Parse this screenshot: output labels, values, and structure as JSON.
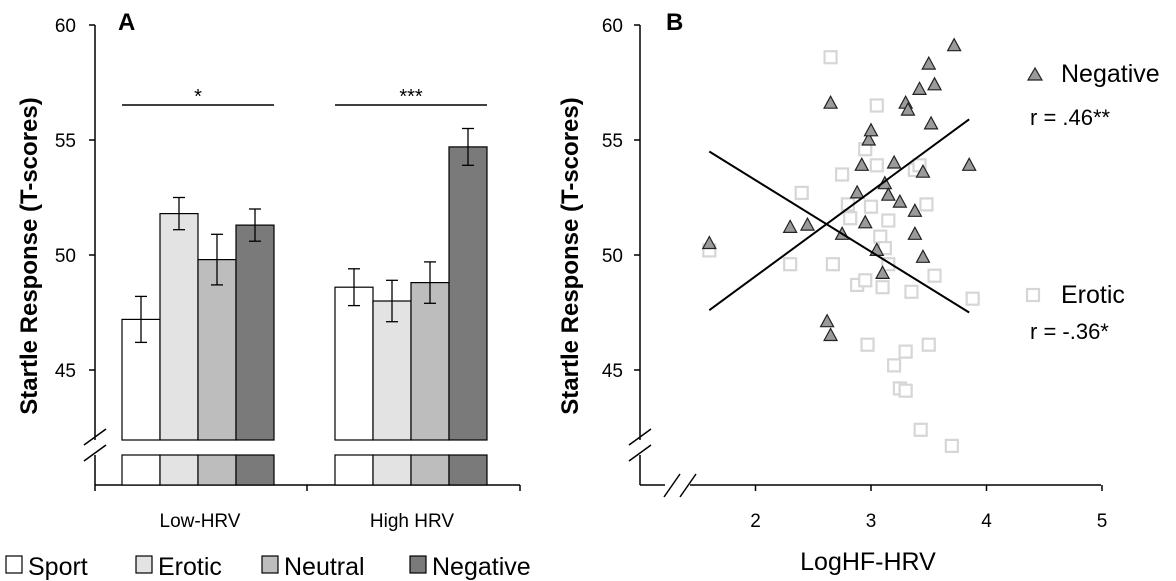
{
  "chart_data": [
    {
      "type": "bar",
      "panel_label": "A",
      "ylabel": "Startle Response (T-scores)",
      "ylim": [
        40,
        60
      ],
      "y_ticks": [
        "45",
        "50",
        "55",
        "60"
      ],
      "categories": [
        "Low-HRV",
        "High HRV"
      ],
      "series": [
        {
          "name": "Sport",
          "values": [
            47.2,
            48.6
          ],
          "errors": [
            1.0,
            0.8
          ],
          "color": "#ffffff"
        },
        {
          "name": "Erotic",
          "values": [
            51.8,
            48.0
          ],
          "errors": [
            0.7,
            0.9
          ],
          "color": "#e3e3e3"
        },
        {
          "name": "Neutral",
          "values": [
            49.8,
            48.8
          ],
          "errors": [
            1.1,
            0.9
          ],
          "color": "#bdbdbd"
        },
        {
          "name": "Negative",
          "values": [
            51.3,
            54.7
          ],
          "errors": [
            0.7,
            0.8
          ],
          "color": "#7a7a7a"
        }
      ],
      "significance": [
        "*",
        "***"
      ],
      "axis_break": true
    },
    {
      "type": "scatter",
      "panel_label": "B",
      "ylabel": "Startle Response (T-scores)",
      "xlabel": "LogHF-HRV",
      "ylim": [
        40,
        60
      ],
      "xlim": [
        1,
        5
      ],
      "x_ticks": [
        "2",
        "3",
        "4",
        "5"
      ],
      "y_ticks": [
        "45",
        "50",
        "55",
        "60"
      ],
      "axis_break": true,
      "series": [
        {
          "name": "Negative",
          "marker": "triangle",
          "color": "#9a9a9a",
          "correlation": "r = .46**",
          "trend": [
            [
              1.6,
              47.6
            ],
            [
              3.85,
              55.9
            ]
          ],
          "points": [
            [
              1.6,
              50.5
            ],
            [
              2.3,
              51.2
            ],
            [
              2.45,
              51.3
            ],
            [
              2.65,
              56.6
            ],
            [
              2.62,
              47.1
            ],
            [
              2.65,
              46.5
            ],
            [
              2.75,
              50.9
            ],
            [
              2.88,
              52.7
            ],
            [
              2.92,
              53.9
            ],
            [
              2.95,
              51.4
            ],
            [
              2.98,
              55.0
            ],
            [
              3.0,
              55.4
            ],
            [
              3.05,
              50.2
            ],
            [
              3.1,
              49.2
            ],
            [
              3.12,
              53.1
            ],
            [
              3.15,
              52.6
            ],
            [
              3.2,
              54.0
            ],
            [
              3.25,
              52.3
            ],
            [
              3.3,
              56.6
            ],
            [
              3.32,
              56.3
            ],
            [
              3.38,
              51.9
            ],
            [
              3.38,
              50.9
            ],
            [
              3.42,
              57.2
            ],
            [
              3.45,
              53.6
            ],
            [
              3.45,
              49.9
            ],
            [
              3.5,
              58.3
            ],
            [
              3.52,
              55.7
            ],
            [
              3.55,
              57.4
            ],
            [
              3.72,
              59.1
            ],
            [
              3.85,
              53.9
            ]
          ]
        },
        {
          "name": "Erotic",
          "marker": "square",
          "color": "#d6d6d6",
          "correlation": "r = -.36*",
          "trend": [
            [
              1.6,
              54.5
            ],
            [
              3.85,
              47.5
            ]
          ],
          "points": [
            [
              1.6,
              50.2
            ],
            [
              2.4,
              52.7
            ],
            [
              2.3,
              49.6
            ],
            [
              2.65,
              58.6
            ],
            [
              2.67,
              49.6
            ],
            [
              2.75,
              53.5
            ],
            [
              2.8,
              52.2
            ],
            [
              2.82,
              51.6
            ],
            [
              2.88,
              48.7
            ],
            [
              2.95,
              54.6
            ],
            [
              2.95,
              48.9
            ],
            [
              3.0,
              52.1
            ],
            [
              3.05,
              53.9
            ],
            [
              3.05,
              56.5
            ],
            [
              3.08,
              50.8
            ],
            [
              3.1,
              48.6
            ],
            [
              3.12,
              50.3
            ],
            [
              3.15,
              49.6
            ],
            [
              2.97,
              46.1
            ],
            [
              3.2,
              45.2
            ],
            [
              3.25,
              44.2
            ],
            [
              3.3,
              44.1
            ],
            [
              3.3,
              45.8
            ],
            [
              3.35,
              48.4
            ],
            [
              3.38,
              53.7
            ],
            [
              3.42,
              53.9
            ],
            [
              3.48,
              52.2
            ],
            [
              3.5,
              46.1
            ],
            [
              3.55,
              49.1
            ],
            [
              3.43,
              42.4
            ],
            [
              3.7,
              41.7
            ],
            [
              3.88,
              48.1
            ],
            [
              3.15,
              51.5
            ]
          ]
        }
      ]
    }
  ],
  "legend_bottom": [
    "Sport",
    "Erotic",
    "Neutral",
    "Negative"
  ]
}
